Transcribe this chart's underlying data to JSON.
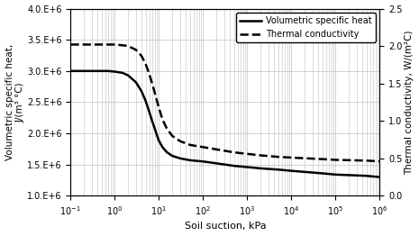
{
  "title": "",
  "xlabel": "Soil suction, kPa",
  "ylabel_left": "Volumetric specific heat,\nJ/(m³ °C)",
  "ylabel_right": "Thermal conductivity, W/(m²C)",
  "xlim": [
    0.1,
    1000000.0
  ],
  "ylim_left": [
    1000000.0,
    4000000.0
  ],
  "ylim_right": [
    0.0,
    2.5
  ],
  "yticks_left": [
    1000000.0,
    1500000.0,
    2000000.0,
    2500000.0,
    3000000.0,
    3500000.0,
    4000000.0
  ],
  "ytick_labels_left": [
    "1.0.E+6",
    "1.5.E+6",
    "2.0.E+6",
    "2.5.E+6",
    "3.0.E+6",
    "3.5.E+6",
    "4.0.E+6"
  ],
  "yticks_right": [
    0.0,
    0.5,
    1.0,
    1.5,
    2.0,
    2.5
  ],
  "ytick_labels_right": [
    "0.0",
    "0.5",
    "1.0",
    "1.5",
    "2.0",
    "2.5"
  ],
  "xticks": [
    0.1,
    1.0,
    10.0,
    100.0,
    1000.0,
    10000.0,
    100000.0,
    1000000.0
  ],
  "xtick_labels": [
    "1.E-1",
    "1.E+0",
    "1.E+1",
    "1.E+2",
    "1.E+3",
    "1.E+4",
    "1.E+5",
    "1.E+6"
  ],
  "vsh_x": [
    0.1,
    0.2,
    0.3,
    0.5,
    0.7,
    1.0,
    1.5,
    2.0,
    3.0,
    4.0,
    5.0,
    6.0,
    7.0,
    8.0,
    9.0,
    10.0,
    12.0,
    15.0,
    20.0,
    30.0,
    50.0,
    100.0,
    200.0,
    500.0,
    1000.0,
    2000.0,
    5000.0,
    10000.0,
    50000.0,
    100000.0,
    500000.0,
    1000000.0
  ],
  "vsh_y": [
    3000000.0,
    3000000.0,
    3000000.0,
    3000000.0,
    3000000.0,
    2990000.0,
    2970000.0,
    2930000.0,
    2820000.0,
    2680000.0,
    2520000.0,
    2350000.0,
    2200000.0,
    2080000.0,
    1970000.0,
    1880000.0,
    1780000.0,
    1700000.0,
    1640000.0,
    1600000.0,
    1570000.0,
    1550000.0,
    1520000.0,
    1480000.0,
    1460000.0,
    1440000.0,
    1420000.0,
    1400000.0,
    1360000.0,
    1340000.0,
    1320000.0,
    1300000.0
  ],
  "tc_x": [
    0.1,
    0.2,
    0.3,
    0.5,
    0.7,
    1.0,
    1.5,
    2.0,
    3.0,
    4.0,
    5.0,
    6.0,
    7.0,
    8.0,
    9.0,
    10.0,
    12.0,
    15.0,
    20.0,
    30.0,
    50.0,
    100.0,
    200.0,
    500.0,
    1000.0,
    2000.0,
    5000.0,
    10000.0,
    50000.0,
    100000.0,
    500000.0,
    1000000.0
  ],
  "tc_y": [
    2.02,
    2.02,
    2.02,
    2.02,
    2.02,
    2.02,
    2.01,
    2.0,
    1.95,
    1.87,
    1.76,
    1.63,
    1.5,
    1.38,
    1.27,
    1.17,
    1.02,
    0.9,
    0.8,
    0.73,
    0.68,
    0.65,
    0.62,
    0.58,
    0.56,
    0.54,
    0.52,
    0.51,
    0.49,
    0.48,
    0.47,
    0.46
  ],
  "legend_solid": "Volumetric specific heat",
  "legend_dashed": "Thermal conductivity",
  "line_color": "black",
  "bg_color": "white",
  "grid_color": "#c0c0c0"
}
